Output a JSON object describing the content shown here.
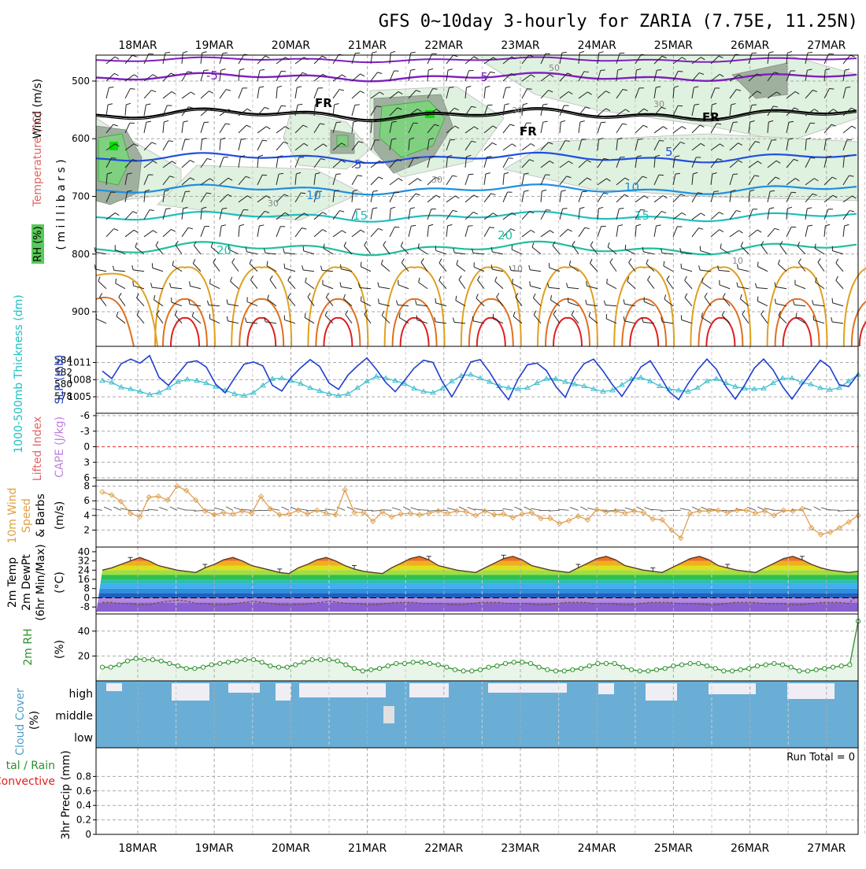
{
  "title": "GFS 0~10day 3-hourly for ZARIA (7.75E, 11.25N)",
  "dates": [
    "18MAR",
    "19MAR",
    "20MAR",
    "21MAR",
    "22MAR",
    "23MAR",
    "24MAR",
    "25MAR",
    "26MAR",
    "27MAR"
  ],
  "colors": {
    "rh_green": "#7fd07f",
    "rh_light": "#dff1df",
    "rh_dark": "#9fb09f",
    "temp_purple": "#7f1fbf",
    "temp_blue": "#1f4fdf",
    "temp_cyan": "#1fbfbf",
    "temp_teal": "#1fbf9f",
    "temp_orange": "#dfa01f",
    "temp_red": "#df1f1f",
    "slp_blue": "#1f3fcf",
    "thick_cyan": "#3fbfcf",
    "wind_orange": "#dfa050",
    "rh2m_green": "#2f8f2f",
    "cloud_blue": "#6aaed6",
    "cloud_gap": "#f0eef5"
  },
  "panels": {
    "upper_air": {
      "ylabel_wind": "Wind (m/s)",
      "ylabel_temp": "Temperature (°C)",
      "ylabel_rh": "RH (%)",
      "ylabel_p": "( m i l l i b a r s )",
      "yticks": [
        "500",
        "600",
        "700",
        "800",
        "900"
      ],
      "contour_labels": [
        "-5",
        "-5",
        "FR",
        "FR",
        "FR",
        "5",
        "5",
        "10",
        "10",
        "15",
        "15",
        "20",
        "20",
        "30",
        "30",
        "30",
        "30",
        "50",
        "10",
        "10"
      ]
    },
    "slp": {
      "ylabel_thick": "1000-500mb Thickness (dm)",
      "ylabel_slp": "SLP (mb)",
      "yticks_left": [
        "584",
        "582",
        "580",
        "578"
      ],
      "yticks_right": [
        "1011",
        "1008",
        "1005"
      ]
    },
    "cape": {
      "ylabel_li": "Lifted Index",
      "ylabel_cape": "CAPE (J/kg)",
      "yticks": [
        "-6",
        "-3",
        "0",
        "3",
        "6"
      ]
    },
    "wind10": {
      "ylabel1": "10m Wind",
      "ylabel2": "Speed",
      "ylabel3": "& Barbs",
      "ylabel4": "(m/s)",
      "yticks": [
        "8",
        "6",
        "4",
        "2"
      ]
    },
    "t2m": {
      "ylabel1": "2m Temp",
      "ylabel2": "2m DewPt",
      "ylabel3": "(6hr Min/Max)",
      "ylabel4": "(°C)",
      "yticks": [
        "40",
        "32",
        "24",
        "16",
        "8",
        "0",
        "-8"
      ]
    },
    "rh2m": {
      "ylabel1": "2m RH",
      "ylabel2": "(%)",
      "yticks": [
        "40",
        "20"
      ]
    },
    "cloud": {
      "ylabel1": "Cloud Cover",
      "ylabel2": "(%)",
      "levels": [
        "high",
        "middle",
        "low"
      ]
    },
    "precip": {
      "ylabel1": "tal / Rain",
      "ylabel2": "Convective",
      "ylabel3": "3hr Precip (mm)",
      "yticks": [
        "0.8",
        "0.6",
        "0.4",
        "0.2",
        "0"
      ],
      "run_total": "Run Total = 0"
    }
  },
  "chart_data": [
    {
      "type": "line",
      "name": "upper-air",
      "x": [
        "18MAR",
        "19MAR",
        "20MAR",
        "21MAR",
        "22MAR",
        "23MAR",
        "24MAR",
        "25MAR",
        "26MAR",
        "27MAR"
      ],
      "ylabel": "( m i l l i b a r s )",
      "ylim": [
        960,
        450
      ],
      "series_levels_mb": {
        "-5": 493,
        "FR": 557,
        "5": 633,
        "10": 688,
        "15": 735,
        "20": 790
      }
    },
    {
      "type": "line",
      "name": "slp-thickness",
      "x_step_hours": 3,
      "series": [
        {
          "name": "SLP (mb)",
          "values": [
            1009.5,
            1008.2,
            1010.8,
            1011.6,
            1010.9,
            1012.2,
            1008.4,
            1007.0,
            1009.0,
            1011.0,
            1011.3,
            1010.2,
            1007.2,
            1005.7,
            1008.3,
            1010.7,
            1011.1,
            1010.4,
            1007.0,
            1006.0,
            1008.4,
            1010.1,
            1011.5,
            1010.3,
            1007.4,
            1006.3,
            1008.8,
            1010.4,
            1011.8,
            1009.8,
            1007.5,
            1005.9,
            1007.9,
            1010.0,
            1011.4,
            1011.0,
            1007.6,
            1005.0,
            1007.9,
            1011.1,
            1011.5,
            1009.3,
            1006.6,
            1004.5,
            1008.1,
            1010.6,
            1010.9,
            1009.6,
            1006.8,
            1004.9,
            1008.6,
            1010.8,
            1011.6,
            1009.5,
            1007.1,
            1005.1,
            1007.6,
            1010.2,
            1011.3,
            1008.7,
            1005.9,
            1004.5,
            1007.3,
            1009.7,
            1011.6,
            1009.8,
            1006.8,
            1004.6,
            1007.1,
            1010.0,
            1011.6,
            1009.7,
            1006.8,
            1004.6,
            1007.0,
            1009.2,
            1011.4,
            1010.2,
            1007.1,
            1006.8,
            1009.0
          ]
        },
        {
          "name": "1000-500mb Thickness (dm)",
          "values": [
            580.6,
            580.3,
            579.5,
            579.2,
            578.8,
            578.3,
            578.6,
            579.4,
            580.4,
            580.8,
            580.6,
            580.2,
            579.6,
            579.0,
            578.4,
            578.1,
            578.6,
            579.8,
            580.9,
            581.0,
            580.6,
            580.1,
            579.4,
            578.9,
            578.4,
            578.1,
            578.4,
            579.4,
            580.5,
            581.3,
            581.0,
            580.6,
            580.1,
            579.3,
            578.8,
            578.6,
            579.3,
            580.5,
            581.4,
            581.6,
            581.0,
            580.4,
            579.7,
            579.4,
            579.2,
            579.4,
            580.2,
            580.9,
            580.9,
            580.4,
            580.0,
            579.7,
            579.2,
            578.8,
            579.0,
            579.9,
            580.9,
            581.1,
            580.5,
            579.7,
            579.2,
            579.0,
            578.8,
            579.4,
            580.5,
            580.9,
            580.2,
            579.6,
            579.3,
            579.2,
            579.3,
            580.2,
            581.0,
            581.0,
            580.3,
            580.0,
            579.4,
            579.1,
            579.4,
            580.5,
            581.6
          ]
        }
      ]
    },
    {
      "type": "line",
      "name": "cape-lifted-index",
      "ylim": [
        -6,
        6
      ],
      "series": [
        {
          "name": "Lifted Index",
          "values": [
            0
          ]
        }
      ]
    },
    {
      "type": "line",
      "name": "wind10m",
      "ylim": [
        0,
        8.5
      ],
      "series": [
        {
          "name": "10m Wind Speed (m/s)",
          "values": [
            7.2,
            6.8,
            5.9,
            4.3,
            3.8,
            6.5,
            6.6,
            6.1,
            8.0,
            7.4,
            6.1,
            4.6,
            4.1,
            4.4,
            4.2,
            4.6,
            4.3,
            6.6,
            4.9,
            4.1,
            4.2,
            4.7,
            4.2,
            4.7,
            4.3,
            4.1,
            7.5,
            4.4,
            4.4,
            3.2,
            4.5,
            3.8,
            4.2,
            4.3,
            4.1,
            4.3,
            4.6,
            4.3,
            4.6,
            4.5,
            4.0,
            4.6,
            4.1,
            4.2,
            3.7,
            4.2,
            4.4,
            3.6,
            3.6,
            2.9,
            3.3,
            3.9,
            3.4,
            4.8,
            4.5,
            4.6,
            4.3,
            4.6,
            4.4,
            3.5,
            3.4,
            2.0,
            0.9,
            4.3,
            4.6,
            4.6,
            4.7,
            4.4,
            4.7,
            4.7,
            4.3,
            4.6,
            4.0,
            4.7,
            4.6,
            4.9,
            2.3,
            1.4,
            1.7,
            2.3,
            3.1,
            4.0
          ]
        }
      ]
    },
    {
      "type": "area",
      "name": "t2m",
      "ylim": [
        -12,
        42
      ],
      "series": [
        {
          "name": "2m Temp (°C)",
          "values": [
            24,
            26,
            29,
            32,
            35,
            32,
            28,
            26,
            24,
            23,
            22,
            26,
            29,
            33,
            35,
            32,
            28,
            26,
            24,
            22,
            21,
            26,
            29,
            33,
            35,
            32,
            28,
            25,
            23,
            22,
            21,
            26,
            30,
            34,
            36,
            33,
            28,
            26,
            24,
            23,
            22,
            26,
            30,
            34,
            36,
            33,
            28,
            26,
            24,
            23,
            22,
            26,
            30,
            34,
            36,
            33,
            28,
            26,
            24,
            23,
            22,
            26,
            30,
            34,
            36,
            33,
            28,
            26,
            24,
            23,
            22,
            26,
            30,
            34,
            36,
            33,
            29,
            26,
            24,
            23,
            22,
            23
          ]
        },
        {
          "name": "2m DewPt (°C)",
          "values": [
            -4,
            -4,
            -5,
            -5,
            -6,
            -6,
            -4,
            -3,
            -2,
            -3,
            -5,
            -5,
            -6,
            -6,
            -5,
            -4,
            -3,
            -4,
            -5,
            -6,
            -6,
            -6,
            -5,
            -4,
            -3,
            -4,
            -5,
            -5,
            -6,
            -6,
            -5,
            -4,
            -4,
            -4,
            -5,
            -5,
            -5,
            -6,
            -6,
            -5,
            -4,
            -4,
            -4,
            -5,
            -5,
            -5,
            -6,
            -6,
            -5,
            -4,
            -4,
            -4,
            -5,
            -5,
            -5,
            -6,
            -6,
            -5,
            -4,
            -4,
            -4,
            -5,
            -5,
            -5,
            -6,
            -6,
            -5,
            -4,
            -4,
            -4,
            -5,
            -5,
            -5,
            -6,
            -6,
            -5,
            -4,
            -4,
            -4,
            -5,
            3
          ]
        }
      ]
    },
    {
      "type": "line",
      "name": "rh2m",
      "ylim": [
        0,
        50
      ],
      "series": [
        {
          "name": "2m RH (%)",
          "values": [
            11,
            11,
            13,
            16,
            18,
            17,
            17,
            16,
            14,
            12,
            10,
            10,
            11,
            13,
            14,
            15,
            16,
            17,
            17,
            15,
            12,
            11,
            11,
            13,
            15,
            17,
            17,
            17,
            16,
            13,
            10,
            8,
            9,
            10,
            12,
            14,
            14,
            15,
            15,
            14,
            13,
            11,
            9,
            8,
            8,
            9,
            11,
            12,
            14,
            15,
            15,
            14,
            11,
            9,
            8,
            8,
            9,
            10,
            12,
            14,
            14,
            14,
            11,
            9,
            8,
            8,
            9,
            10,
            12,
            13,
            14,
            14,
            12,
            10,
            8,
            8,
            9,
            10,
            12,
            13,
            14,
            13,
            11,
            8,
            8,
            9,
            10,
            11,
            12,
            13,
            48
          ]
        }
      ]
    },
    {
      "type": "bar",
      "name": "cloud-cover",
      "categories": [
        "high",
        "middle",
        "low"
      ]
    },
    {
      "type": "bar",
      "name": "precip",
      "ylim": [
        0,
        1
      ],
      "series": [
        {
          "name": "3hr Precip (mm)",
          "values": [
            0
          ]
        }
      ]
    }
  ]
}
